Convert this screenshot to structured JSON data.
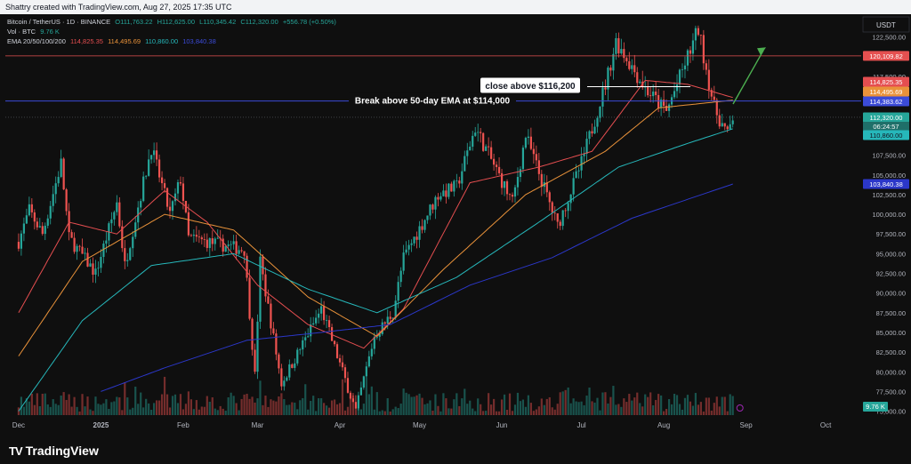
{
  "header": {
    "creator_line": "Shattry created with TradingView.com, Aug 27, 2025 17:35 UTC"
  },
  "legend": {
    "symbol_line": "Bitcoin / TetherUS · 1D · BINANCE",
    "ohlc": {
      "o": "O111,763.22",
      "h": "H112,625.00",
      "l": "L110,345.42",
      "c": "C112,320.00",
      "chg": "+556.78 (+0.50%)"
    },
    "vol_label": "Vol · BTC",
    "vol_value": "9.76 K",
    "ema_label": "EMA 20/50/100/200",
    "ema_values": [
      "114,825.35",
      "114,495.69",
      "110,860.00",
      "103,840.38"
    ]
  },
  "footer": {
    "brand": "TradingView",
    "brand_mark": "TV"
  },
  "colors": {
    "background": "#0f0f0f",
    "up": "#26a69a",
    "down": "#ef5350",
    "ema20": "#e54e50",
    "ema50": "#e9923a",
    "ema100": "#26b7ba",
    "ema200": "#2b37c9",
    "resistance_line": "#e55050",
    "support_line": "#3b4bd8",
    "arrow": "#4caf50"
  },
  "chart_data": {
    "type": "candlestick",
    "symbol": "BTCUSDT",
    "interval": "1D",
    "y_unit": "USDT",
    "ylim": [
      74500,
      124500
    ],
    "y_ticks": [
      122500,
      117500,
      107500,
      105000,
      102500,
      100000,
      97500,
      95000,
      92500,
      90000,
      87500,
      85000,
      82500,
      80000,
      77500,
      75000
    ],
    "x_ticks": [
      "Dec",
      "2025",
      "Feb",
      "Mar",
      "Apr",
      "May",
      "Jun",
      "Jul",
      "Aug",
      "Sep",
      "Oct"
    ],
    "price_path": [
      [
        "2024-12-01",
        96500
      ],
      [
        "2024-12-05",
        100500
      ],
      [
        "2024-12-10",
        97500
      ],
      [
        "2024-12-17",
        106500
      ],
      [
        "2024-12-20",
        97000
      ],
      [
        "2024-12-30",
        92500
      ],
      [
        "2025-01-07",
        101500
      ],
      [
        "2025-01-10",
        93500
      ],
      [
        "2025-01-20",
        108500
      ],
      [
        "2025-01-27",
        100000
      ],
      [
        "2025-01-31",
        104500
      ],
      [
        "2025-02-03",
        97000
      ],
      [
        "2025-02-24",
        95500
      ],
      [
        "2025-02-28",
        79500
      ],
      [
        "2025-03-02",
        94000
      ],
      [
        "2025-03-10",
        78500
      ],
      [
        "2025-03-25",
        88000
      ],
      [
        "2025-04-07",
        75000
      ],
      [
        "2025-04-14",
        84500
      ],
      [
        "2025-04-21",
        87500
      ],
      [
        "2025-04-25",
        94500
      ],
      [
        "2025-05-08",
        102500
      ],
      [
        "2025-05-15",
        103500
      ],
      [
        "2025-05-22",
        111000
      ],
      [
        "2025-06-05",
        101500
      ],
      [
        "2025-06-10",
        110000
      ],
      [
        "2025-06-22",
        98500
      ],
      [
        "2025-07-01",
        106500
      ],
      [
        "2025-07-10",
        116500
      ],
      [
        "2025-07-14",
        122000
      ],
      [
        "2025-07-25",
        116000
      ],
      [
        "2025-08-02",
        113000
      ],
      [
        "2025-08-14",
        123500
      ],
      [
        "2025-08-20",
        113500
      ],
      [
        "2025-08-25",
        110000
      ],
      [
        "2025-08-27",
        112320
      ]
    ],
    "series": [
      {
        "name": "EMA 20",
        "last": 114825.35,
        "points": [
          [
            "2024-12-01",
            87500
          ],
          [
            "2024-12-20",
            99000
          ],
          [
            "2025-01-07",
            97500
          ],
          [
            "2025-01-25",
            103000
          ],
          [
            "2025-02-10",
            99000
          ],
          [
            "2025-03-01",
            91000
          ],
          [
            "2025-03-20",
            86000
          ],
          [
            "2025-04-10",
            83000
          ],
          [
            "2025-04-25",
            88000
          ],
          [
            "2025-05-20",
            104000
          ],
          [
            "2025-06-15",
            106000
          ],
          [
            "2025-07-05",
            108000
          ],
          [
            "2025-07-25",
            117000
          ],
          [
            "2025-08-10",
            116500
          ],
          [
            "2025-08-27",
            114825
          ]
        ]
      },
      {
        "name": "EMA 50",
        "last": 114495.69,
        "points": [
          [
            "2024-12-01",
            82000
          ],
          [
            "2024-12-25",
            94000
          ],
          [
            "2025-01-25",
            100000
          ],
          [
            "2025-02-20",
            98000
          ],
          [
            "2025-03-20",
            89500
          ],
          [
            "2025-04-15",
            84500
          ],
          [
            "2025-05-10",
            93000
          ],
          [
            "2025-06-10",
            102500
          ],
          [
            "2025-07-10",
            108000
          ],
          [
            "2025-07-30",
            113500
          ],
          [
            "2025-08-27",
            114495
          ]
        ]
      },
      {
        "name": "EMA 100",
        "last": 110860,
        "points": [
          [
            "2024-12-01",
            75000
          ],
          [
            "2024-12-25",
            86500
          ],
          [
            "2025-01-20",
            93500
          ],
          [
            "2025-02-20",
            95000
          ],
          [
            "2025-03-20",
            90500
          ],
          [
            "2025-04-15",
            87500
          ],
          [
            "2025-05-15",
            92000
          ],
          [
            "2025-06-15",
            99000
          ],
          [
            "2025-07-15",
            106000
          ],
          [
            "2025-08-10",
            109000
          ],
          [
            "2025-08-27",
            110860
          ]
        ]
      },
      {
        "name": "EMA 200",
        "last": 103840.38,
        "points": [
          [
            "2025-01-01",
            77500
          ],
          [
            "2025-01-25",
            80500
          ],
          [
            "2025-02-25",
            84000
          ],
          [
            "2025-03-25",
            85000
          ],
          [
            "2025-04-20",
            86000
          ],
          [
            "2025-05-20",
            91000
          ],
          [
            "2025-06-20",
            94500
          ],
          [
            "2025-07-20",
            99500
          ],
          [
            "2025-08-27",
            103840
          ]
        ]
      }
    ],
    "price_labels": [
      {
        "value": 120109.82,
        "text": "120,109.82",
        "role": "resistance line",
        "color": "#e55050"
      },
      {
        "value": 114825.35,
        "text": "114,825.35",
        "role": "EMA 20",
        "color": "#e54e50"
      },
      {
        "value": 114495.69,
        "text": "114,495.69",
        "role": "EMA 50",
        "color": "#e9923a"
      },
      {
        "value": 114383.62,
        "text": "114,383.62",
        "role": "horizontal line",
        "color": "#3b4bd8"
      },
      {
        "value": 112320.0,
        "text": "112,320.00",
        "role": "last price",
        "color": "#26a69a"
      },
      {
        "value": 110860.0,
        "text": "110,860.00",
        "role": "EMA 100",
        "color": "#26b7ba"
      },
      {
        "value": 103840.38,
        "text": "103,840.38",
        "role": "EMA 200",
        "color": "#2b37c9"
      }
    ],
    "countdown": "06:24:57",
    "volume_last_label": "9.76 K",
    "annotations": [
      {
        "text": "close above $116,200",
        "value": 116200
      },
      {
        "text": "Break above 50-day EMA at $114,000",
        "value": 114000
      }
    ],
    "grid": false
  }
}
